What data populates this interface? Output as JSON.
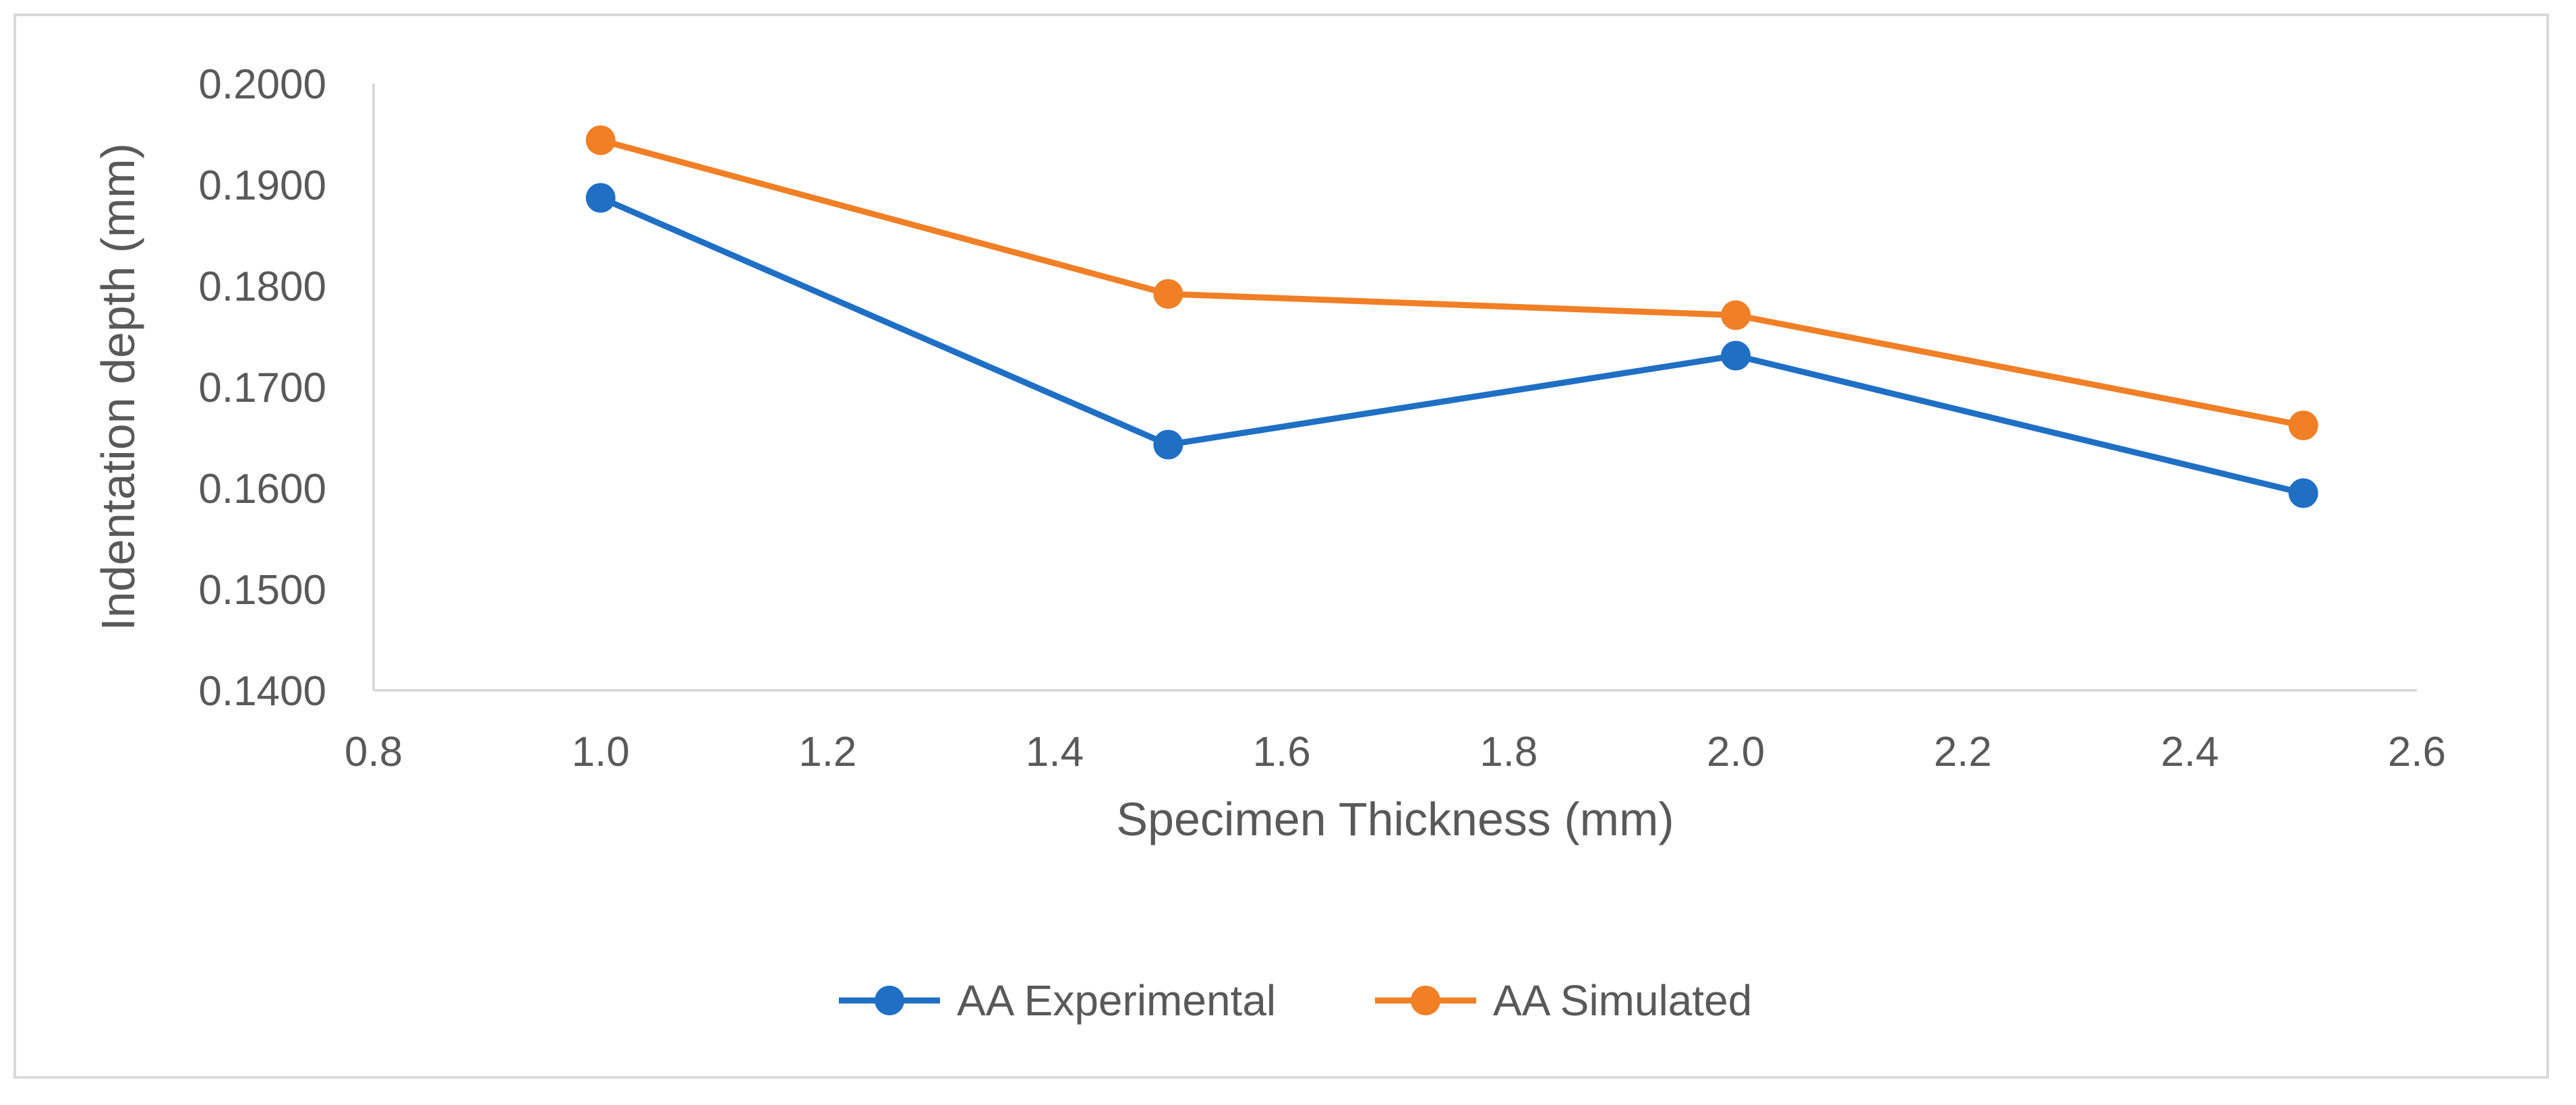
{
  "chart_data": {
    "type": "line",
    "title": "",
    "xlabel": "Specimen Thickness (mm)",
    "ylabel": "Indentation depth (mm)",
    "xlim": [
      0.8,
      2.6
    ],
    "ylim": [
      0.14,
      0.2
    ],
    "x_ticks": [
      "0.8",
      "1.0",
      "1.2",
      "1.4",
      "1.6",
      "1.8",
      "2.0",
      "2.2",
      "2.4",
      "2.6"
    ],
    "y_ticks": [
      "0.1400",
      "0.1500",
      "0.1600",
      "0.1700",
      "0.1800",
      "0.1900",
      "0.2000"
    ],
    "grid": false,
    "legend_position": "bottom",
    "series": [
      {
        "name": "AA Experimental",
        "color": "#1f6fc5",
        "x": [
          1.0,
          1.5,
          2.0,
          2.5
        ],
        "y": [
          0.1887,
          0.1643,
          0.1731,
          0.1595
        ]
      },
      {
        "name": "AA Simulated",
        "color": "#f07f26",
        "x": [
          1.0,
          1.5,
          2.0,
          2.5
        ],
        "y": [
          0.1944,
          0.1792,
          0.1771,
          0.1662
        ]
      }
    ]
  }
}
